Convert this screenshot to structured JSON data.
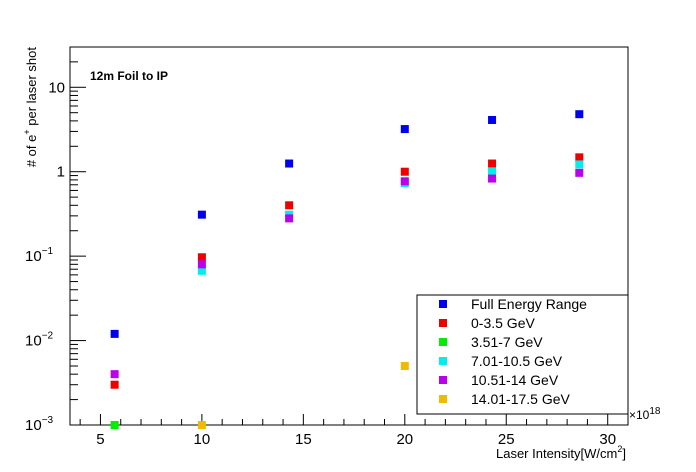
{
  "chart_data": {
    "type": "scatter",
    "title": "12m Foil to IP",
    "xlabel": "Laser Intensity[W/cm",
    "xlabel_sup": "2",
    "xlabel_close": "]",
    "x_multiplier": "×10",
    "x_multiplier_exp": "18",
    "ylabel_prefix": "# of e",
    "ylabel_sup": "+",
    "ylabel_suffix": " per laser shot",
    "xlim": [
      3.5,
      31
    ],
    "ylim": [
      0.001,
      30
    ],
    "yscale": "log",
    "x_ticks": [
      5,
      10,
      15,
      20,
      25,
      30
    ],
    "x_tick_labels": [
      "5",
      "10",
      "15",
      "20",
      "25",
      "30"
    ],
    "y_ticks": [
      {
        "value": 0.001,
        "base": "10",
        "exp": "−3"
      },
      {
        "value": 0.01,
        "base": "10",
        "exp": "−2"
      },
      {
        "value": 0.1,
        "base": "10",
        "exp": "−1"
      },
      {
        "value": 1,
        "base": "1",
        "exp": ""
      },
      {
        "value": 10,
        "base": "10",
        "exp": ""
      }
    ],
    "legend_position": "bottom-right",
    "series": [
      {
        "name": "Full Energy Range",
        "color": "#0000ee",
        "points": [
          [
            5.7,
            0.012
          ],
          [
            10,
            0.31
          ],
          [
            14.3,
            1.25
          ],
          [
            20,
            3.2
          ],
          [
            24.3,
            4.1
          ],
          [
            28.6,
            4.8
          ]
        ]
      },
      {
        "name": "0-3.5 GeV",
        "color": "#ee0000",
        "points": [
          [
            5.7,
            0.003
          ],
          [
            10,
            0.097
          ],
          [
            14.3,
            0.4
          ],
          [
            20,
            1.0
          ],
          [
            24.3,
            1.25
          ],
          [
            28.6,
            1.48
          ]
        ]
      },
      {
        "name": "3.51-7 GeV",
        "color": "#00ee00",
        "points": [
          [
            5.7,
            0.001
          ]
        ]
      },
      {
        "name": "7.01-10.5 GeV",
        "color": "#00eeee",
        "points": [
          [
            10,
            0.067
          ],
          [
            14.3,
            0.31
          ],
          [
            20,
            0.73
          ],
          [
            24.3,
            1.0
          ],
          [
            28.6,
            1.22
          ]
        ]
      },
      {
        "name": "10.51-14 GeV",
        "color": "#bb00ee",
        "points": [
          [
            5.7,
            0.004
          ],
          [
            10,
            0.08
          ],
          [
            14.3,
            0.28
          ],
          [
            20,
            0.77
          ],
          [
            24.3,
            0.83
          ],
          [
            28.6,
            0.97
          ]
        ]
      },
      {
        "name": "14.01-17.5 GeV",
        "color": "#eebb00",
        "points": [
          [
            10,
            0.001
          ],
          [
            20,
            0.005
          ]
        ]
      }
    ]
  }
}
